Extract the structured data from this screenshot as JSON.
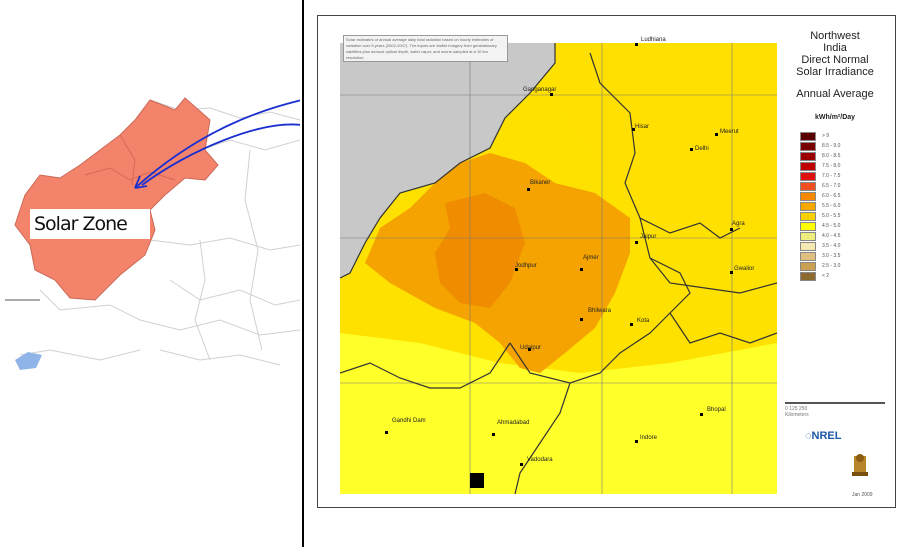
{
  "left_map": {
    "label": "Solar Zone",
    "colors": {
      "zone": "#f4836b",
      "arrow": "#1a2fcf",
      "water": "#8fb4e8"
    }
  },
  "main_map": {
    "title_lines": [
      "Northwest",
      "India",
      "Direct Normal",
      "Solar Irradiance"
    ],
    "subtitle": "Annual Average",
    "unit": "kWh/m²/Day",
    "note": "Solar estimates of annual average daily total radiation based on hourly estimates of radiation over 5 years (2002-2007). The inputs are visible imagery from geostationary satellites plus aerosol optical depth, water vapor, and ozone sampled at a 10 km resolution.",
    "legend": [
      {
        "label": "> 9",
        "color": "#5a0000"
      },
      {
        "label": "8.5 - 9.0",
        "color": "#7a0000"
      },
      {
        "label": "8.0 - 8.5",
        "color": "#9a0000"
      },
      {
        "label": "7.5 - 8.0",
        "color": "#c00000"
      },
      {
        "label": "7.0 - 7.5",
        "color": "#e01010"
      },
      {
        "label": "6.5 - 7.0",
        "color": "#f05020"
      },
      {
        "label": "6.0 - 6.5",
        "color": "#f58a00"
      },
      {
        "label": "5.5 - 6.0",
        "color": "#f8a800"
      },
      {
        "label": "5.0 - 5.5",
        "color": "#f8d000"
      },
      {
        "label": "4.5 - 5.0",
        "color": "#ffff00"
      },
      {
        "label": "4.0 - 4.5",
        "color": "#eeee80"
      },
      {
        "label": "3.5 - 4.0",
        "color": "#f2e8b0"
      },
      {
        "label": "3.0 - 3.5",
        "color": "#e0c080"
      },
      {
        "label": "2.5 - 3.0",
        "color": "#c8a050"
      },
      {
        "label": "< 2",
        "color": "#8b6a30"
      }
    ],
    "cities": [
      {
        "name": "Ludhiana"
      },
      {
        "name": "Ganganagar"
      },
      {
        "name": "Hisar"
      },
      {
        "name": "Meerut"
      },
      {
        "name": "Delhi"
      },
      {
        "name": "Bikaner"
      },
      {
        "name": "Agra"
      },
      {
        "name": "Jaipur"
      },
      {
        "name": "Jodhpur"
      },
      {
        "name": "Ajmer"
      },
      {
        "name": "Gwalior"
      },
      {
        "name": "Bhilwara"
      },
      {
        "name": "Kota"
      },
      {
        "name": "Udaipur"
      },
      {
        "name": "Gandhi Dam"
      },
      {
        "name": "Ahmadabad"
      },
      {
        "name": "Bhopal"
      },
      {
        "name": "Indore"
      },
      {
        "name": "Vadodara"
      }
    ],
    "logo": "NREL",
    "scale": "0   125   250",
    "scale_unit": "Kilometers",
    "date": "Jan 2009",
    "colors": {
      "sea": "#cfcfcf",
      "gray_land": "#c8c8c8",
      "orange": "#f5a300",
      "dark_orange": "#ef8c00",
      "yellow": "#ffe100",
      "bright_yellow": "#ffff33"
    }
  }
}
